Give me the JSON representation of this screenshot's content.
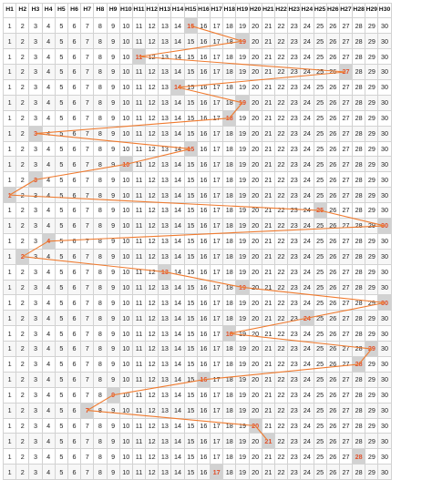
{
  "chart_data": {
    "type": "table",
    "columns": [
      "H1",
      "H2",
      "H3",
      "H4",
      "H5",
      "H6",
      "H7",
      "H8",
      "H9",
      "H10",
      "H11",
      "H12",
      "H13",
      "H14",
      "H15",
      "H16",
      "H17",
      "H18",
      "H19",
      "H20",
      "H21",
      "H22",
      "H23",
      "H24",
      "H25",
      "H26",
      "H27",
      "H28",
      "H29",
      "H30"
    ],
    "row_values": [
      1,
      2,
      3,
      4,
      5,
      6,
      7,
      8,
      9,
      10,
      11,
      12,
      13,
      14,
      15,
      16,
      17,
      18,
      19,
      20,
      21,
      22,
      23,
      24,
      25,
      26,
      27,
      28,
      29,
      30
    ],
    "highlighted_path": [
      15,
      19,
      11,
      27,
      14,
      19,
      18,
      3,
      15,
      10,
      3,
      1,
      25,
      30,
      4,
      2,
      13,
      19,
      30,
      24,
      18,
      29,
      28,
      16,
      9,
      7,
      20,
      21,
      28,
      17
    ],
    "line_color": "#f07a2e",
    "highlight_color": "#d2d2d2",
    "highlight_text_color": "#e0502a",
    "grid": true
  }
}
